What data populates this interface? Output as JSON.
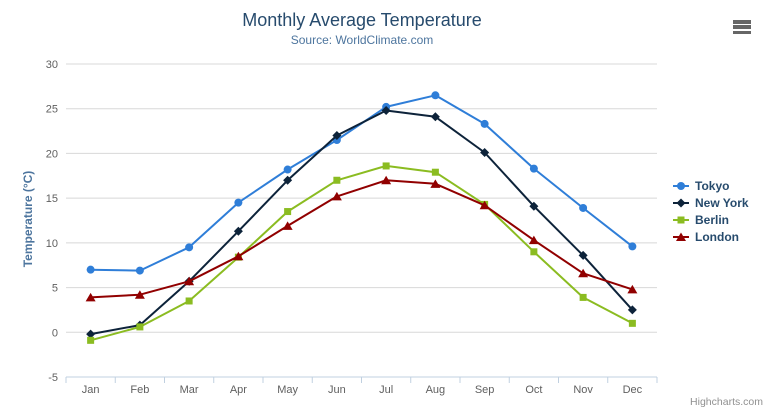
{
  "header": {
    "title": "Monthly Average Temperature",
    "subtitle": "Source: WorldClimate.com"
  },
  "credits": {
    "label": "Highcharts.com"
  },
  "menu": {
    "icon": "hamburger-menu-icon"
  },
  "palette": {
    "background": "#ffffff",
    "title_color": "#274b6d",
    "subtitle_color": "#4d759e",
    "yaxis_title_color": "#4d759e",
    "axis_label_color": "#606060",
    "gridline_color": "#d8d8d8",
    "axis_line_color": "#c0d0e0",
    "legend_text_color": "#274b6d",
    "credits_color": "#909090",
    "menu_icon_color": "#666666"
  },
  "chart_data": {
    "type": "line",
    "title": "Monthly Average Temperature",
    "subtitle": "Source: WorldClimate.com",
    "xlabel": "",
    "ylabel": "Temperature (°C)",
    "ylim": [
      -5,
      30
    ],
    "ytick_interval": 5,
    "yticks": [
      -5,
      0,
      5,
      10,
      15,
      20,
      25,
      30
    ],
    "grid": true,
    "legend_position": "right",
    "categories": [
      "Jan",
      "Feb",
      "Mar",
      "Apr",
      "May",
      "Jun",
      "Jul",
      "Aug",
      "Sep",
      "Oct",
      "Nov",
      "Dec"
    ],
    "series": [
      {
        "name": "Tokyo",
        "color": "#2f7ed8",
        "marker": "circle",
        "values": [
          7.0,
          6.9,
          9.5,
          14.5,
          18.2,
          21.5,
          25.2,
          26.5,
          23.3,
          18.3,
          13.9,
          9.6
        ]
      },
      {
        "name": "New York",
        "color": "#0d233a",
        "marker": "diamond",
        "values": [
          -0.2,
          0.8,
          5.7,
          11.3,
          17.0,
          22.0,
          24.8,
          24.1,
          20.1,
          14.1,
          8.6,
          2.5
        ]
      },
      {
        "name": "Berlin",
        "color": "#8bbc21",
        "marker": "square",
        "values": [
          -0.9,
          0.6,
          3.5,
          8.4,
          13.5,
          17.0,
          18.6,
          17.9,
          14.3,
          9.0,
          3.9,
          1.0
        ]
      },
      {
        "name": "London",
        "color": "#910000",
        "marker": "triangle",
        "values": [
          3.9,
          4.2,
          5.7,
          8.5,
          11.9,
          15.2,
          17.0,
          16.6,
          14.2,
          10.3,
          6.6,
          4.8
        ]
      }
    ]
  }
}
